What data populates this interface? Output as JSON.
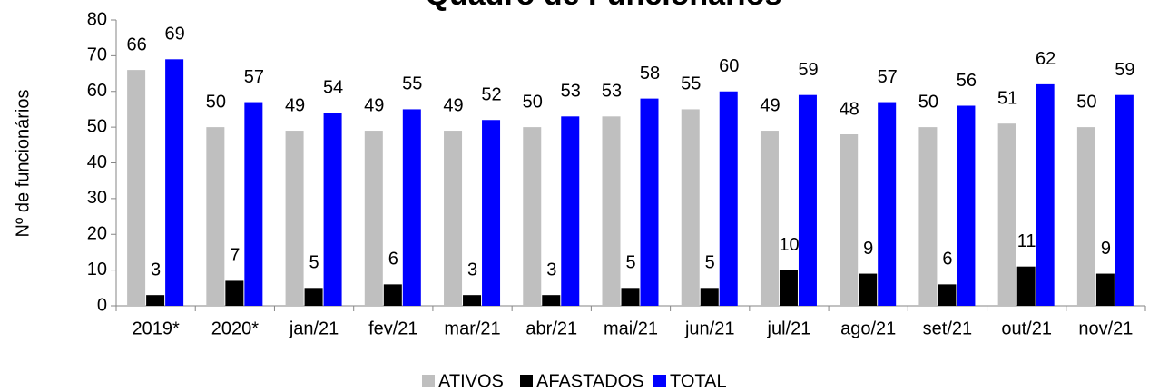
{
  "chart_data": {
    "type": "bar",
    "title": "Quadro de Funcionários",
    "y_label": "Nº de funcionários",
    "categories": [
      "2019*",
      "2020*",
      "jan/21",
      "fev/21",
      "mar/21",
      "abr/21",
      "mai/21",
      "jun/21",
      "jul/21",
      "ago/21",
      "set/21",
      "out/21",
      "nov/21"
    ],
    "series": [
      {
        "name": "ATIVOS",
        "color": "#bfbfbf",
        "values": [
          66,
          50,
          49,
          49,
          49,
          50,
          53,
          55,
          49,
          48,
          50,
          51,
          50
        ]
      },
      {
        "name": "AFASTADOS",
        "color": "#000000",
        "values": [
          3,
          7,
          5,
          6,
          3,
          3,
          5,
          5,
          10,
          9,
          6,
          11,
          9
        ]
      },
      {
        "name": "TOTAL",
        "color": "#0000ff",
        "values": [
          69,
          57,
          54,
          55,
          52,
          53,
          58,
          60,
          59,
          57,
          56,
          62,
          59
        ]
      }
    ],
    "ylim": [
      0,
      80
    ],
    "yticks": [
      0,
      10,
      20,
      30,
      40,
      50,
      60,
      70,
      80
    ],
    "grid": false,
    "legend": "bottom"
  }
}
